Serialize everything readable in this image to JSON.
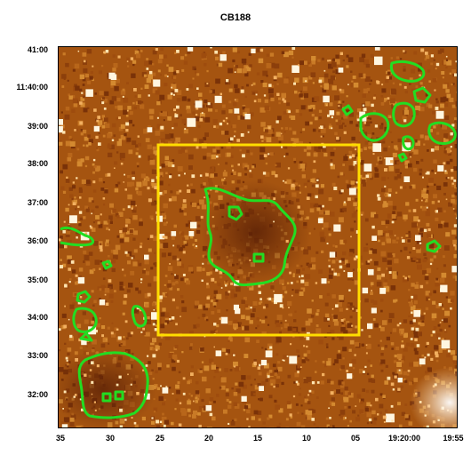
{
  "title": "CB188",
  "y_ticks": [
    "41:00",
    "11:40:00",
    "39:00",
    "38:00",
    "37:00",
    "36:00",
    "35:00",
    "34:00",
    "33:00",
    "32:00"
  ],
  "x_ticks": [
    "35",
    "30",
    "25",
    "20",
    "15",
    "10",
    "05",
    "19:20:00",
    "19:55"
  ],
  "colors": {
    "image_base": "#a0500f",
    "dark_cloud": "#5a2006",
    "star": "#fff2d0",
    "contour": "#22dd22",
    "box": "#ffdd00"
  }
}
